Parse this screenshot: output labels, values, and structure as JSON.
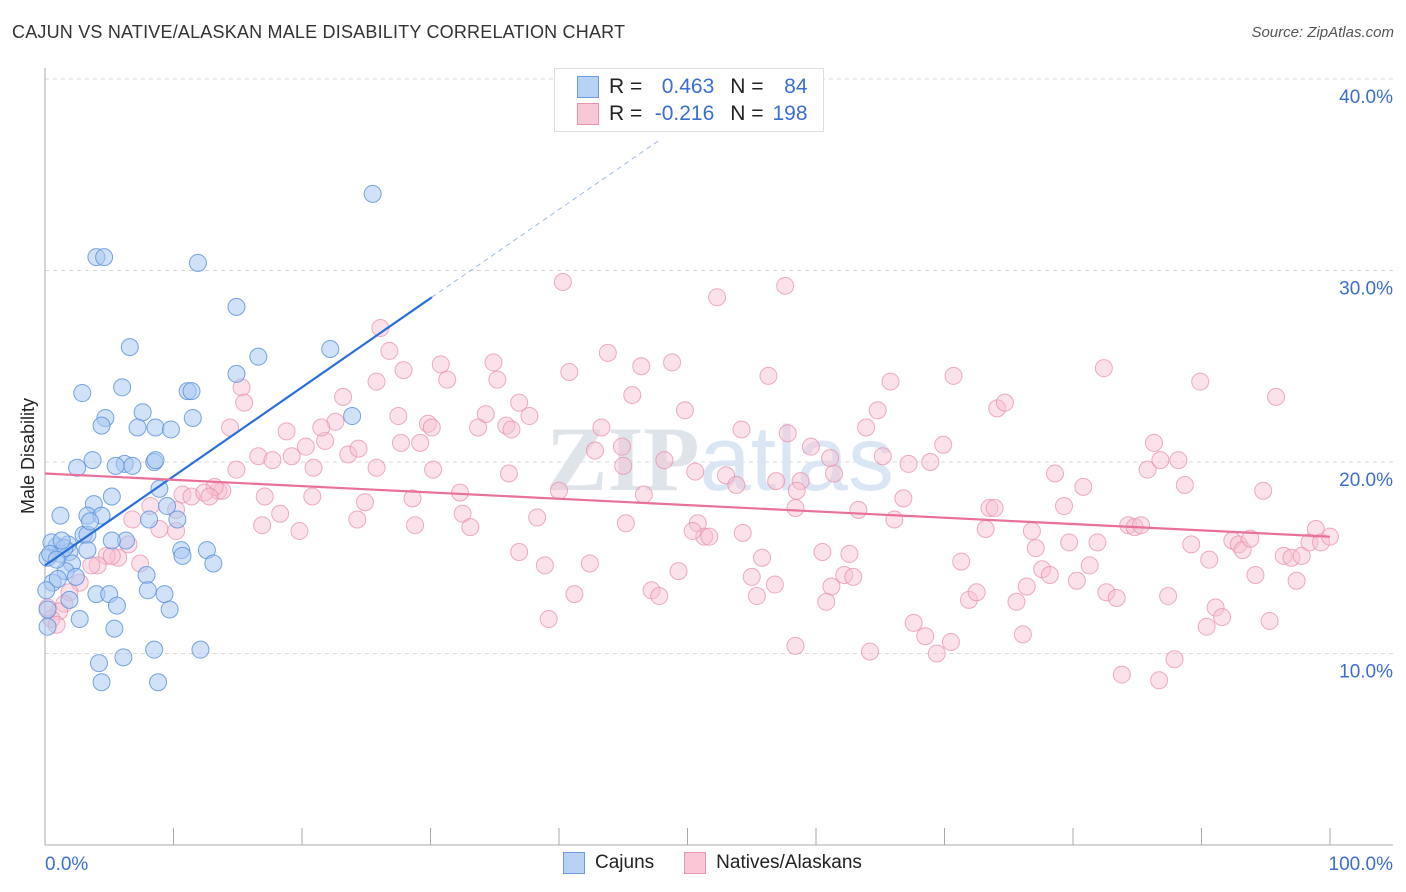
{
  "title": "CAJUN VS NATIVE/ALASKAN MALE DISABILITY CORRELATION CHART",
  "source": "Source: ZipAtlas.com",
  "watermark": "ZIPatlas",
  "legend": {
    "rows": [
      {
        "r_label": "R =",
        "r_value": "0.463",
        "n_label": "N =",
        "n_value": "84"
      },
      {
        "r_label": "R =",
        "r_value": "-0.216",
        "n_label": "N =",
        "n_value": "198"
      }
    ]
  },
  "bottom_legend": [
    "Cajuns",
    "Natives/Alaskans"
  ],
  "colors": {
    "blue_fill": "#a9c8f2",
    "blue_stroke": "#5a8fdc",
    "blue_line": "#2a6fd8",
    "pink_fill": "#f7bfd0",
    "pink_stroke": "#e88aa8",
    "pink_line": "#e8709a",
    "label": "#3a6fd0"
  },
  "chart_data": {
    "type": "scatter",
    "title": "CAJUN VS NATIVE/ALASKAN MALE DISABILITY CORRELATION CHART",
    "xlabel": "",
    "ylabel": "Male Disability",
    "xlim": [
      0,
      100
    ],
    "ylim": [
      0,
      40
    ],
    "x_tick_labels": [
      "0.0%",
      "100.0%"
    ],
    "y_ticks": [
      10,
      20,
      30,
      40
    ],
    "y_tick_labels": [
      "10.0%",
      "20.0%",
      "30.0%",
      "40.0%"
    ],
    "grid": true,
    "legend_position": "top-center",
    "series": [
      {
        "name": "Cajuns",
        "R": 0.463,
        "N": 84,
        "trend": {
          "x0": 0,
          "y0": 14.6,
          "x1": 30.1,
          "y1": 28.6,
          "dash_to_x": 47.8,
          "dash_to_y": 36.8
        },
        "points": [
          [
            25.5,
            34.0
          ],
          [
            4.0,
            30.7
          ],
          [
            4.6,
            30.7
          ],
          [
            11.9,
            30.4
          ],
          [
            14.9,
            28.1
          ],
          [
            6.6,
            26.0
          ],
          [
            16.6,
            25.5
          ],
          [
            22.2,
            25.9
          ],
          [
            2.9,
            23.6
          ],
          [
            6.0,
            23.9
          ],
          [
            11.1,
            23.7
          ],
          [
            11.4,
            23.7
          ],
          [
            14.9,
            24.6
          ],
          [
            4.7,
            22.3
          ],
          [
            7.6,
            22.6
          ],
          [
            23.9,
            22.4
          ],
          [
            4.4,
            21.9
          ],
          [
            7.2,
            21.8
          ],
          [
            8.6,
            21.8
          ],
          [
            9.8,
            21.7
          ],
          [
            11.5,
            22.3
          ],
          [
            3.7,
            20.1
          ],
          [
            6.2,
            19.9
          ],
          [
            5.5,
            19.8
          ],
          [
            6.8,
            19.8
          ],
          [
            8.5,
            20.0
          ],
          [
            8.6,
            20.1
          ],
          [
            2.5,
            19.7
          ],
          [
            8.9,
            18.6
          ],
          [
            5.2,
            18.2
          ],
          [
            3.8,
            17.8
          ],
          [
            1.2,
            17.2
          ],
          [
            3.3,
            17.2
          ],
          [
            4.4,
            17.2
          ],
          [
            10.3,
            17.0
          ],
          [
            8.1,
            17.0
          ],
          [
            9.5,
            17.7
          ],
          [
            3.0,
            16.2
          ],
          [
            3.3,
            16.2
          ],
          [
            0.9,
            15.6
          ],
          [
            0.5,
            15.8
          ],
          [
            1.8,
            15.7
          ],
          [
            1.2,
            15.2
          ],
          [
            1.9,
            15.3
          ],
          [
            3.3,
            15.4
          ],
          [
            6.3,
            15.9
          ],
          [
            10.6,
            15.4
          ],
          [
            10.7,
            15.1
          ],
          [
            12.6,
            15.4
          ],
          [
            13.1,
            14.7
          ],
          [
            2.1,
            14.7
          ],
          [
            1.6,
            14.3
          ],
          [
            2.4,
            14.0
          ],
          [
            7.9,
            14.1
          ],
          [
            0.6,
            13.7
          ],
          [
            4.0,
            13.1
          ],
          [
            5.0,
            13.1
          ],
          [
            8.0,
            13.3
          ],
          [
            9.3,
            13.1
          ],
          [
            5.6,
            12.5
          ],
          [
            9.7,
            12.3
          ],
          [
            2.7,
            11.8
          ],
          [
            5.4,
            11.3
          ],
          [
            0.2,
            11.4
          ],
          [
            8.5,
            10.2
          ],
          [
            6.1,
            9.8
          ],
          [
            12.1,
            10.2
          ],
          [
            4.2,
            9.5
          ],
          [
            4.4,
            8.5
          ],
          [
            8.8,
            8.5
          ],
          [
            1.9,
            12.8
          ],
          [
            1.0,
            13.9
          ],
          [
            1.5,
            15.5
          ],
          [
            0.2,
            15.0
          ],
          [
            0.4,
            15.2
          ],
          [
            0.9,
            14.9
          ],
          [
            1.3,
            15.9
          ],
          [
            3.5,
            16.9
          ],
          [
            5.2,
            15.9
          ],
          [
            0.1,
            13.3
          ],
          [
            0.2,
            12.3
          ]
        ]
      },
      {
        "name": "Natives/Alaskans",
        "R": -0.216,
        "N": 198,
        "trend": {
          "x0": 0,
          "y0": 19.4,
          "x1": 100,
          "y1": 16.1
        },
        "points": [
          [
            26.1,
            27.0
          ],
          [
            26.8,
            25.8
          ],
          [
            27.9,
            24.8
          ],
          [
            30.8,
            25.1
          ],
          [
            31.3,
            24.3
          ],
          [
            34.9,
            25.2
          ],
          [
            35.2,
            24.3
          ],
          [
            36.9,
            23.1
          ],
          [
            37.7,
            22.4
          ],
          [
            34.3,
            22.5
          ],
          [
            33.7,
            21.8
          ],
          [
            35.9,
            21.9
          ],
          [
            36.3,
            21.7
          ],
          [
            40.3,
            29.4
          ],
          [
            52.3,
            28.6
          ],
          [
            57.6,
            29.2
          ],
          [
            43.8,
            25.7
          ],
          [
            46.4,
            25.0
          ],
          [
            48.8,
            25.2
          ],
          [
            40.8,
            24.7
          ],
          [
            45.7,
            23.5
          ],
          [
            49.8,
            22.7
          ],
          [
            43.3,
            21.8
          ],
          [
            44.9,
            20.8
          ],
          [
            42.8,
            20.6
          ],
          [
            45.0,
            19.8
          ],
          [
            48.2,
            20.1
          ],
          [
            46.6,
            18.3
          ],
          [
            50.6,
            19.5
          ],
          [
            53.0,
            19.3
          ],
          [
            53.8,
            18.8
          ],
          [
            40.0,
            18.5
          ],
          [
            36.1,
            19.4
          ],
          [
            32.3,
            18.4
          ],
          [
            32.5,
            17.3
          ],
          [
            33.1,
            16.6
          ],
          [
            38.3,
            17.1
          ],
          [
            28.6,
            18.1
          ],
          [
            28.8,
            16.7
          ],
          [
            27.7,
            21.0
          ],
          [
            29.8,
            22.0
          ],
          [
            30.2,
            19.6
          ],
          [
            29.2,
            21.0
          ],
          [
            27.5,
            22.4
          ],
          [
            25.8,
            24.2
          ],
          [
            23.2,
            23.4
          ],
          [
            22.6,
            22.1
          ],
          [
            21.8,
            21.1
          ],
          [
            21.5,
            21.8
          ],
          [
            20.3,
            20.8
          ],
          [
            20.9,
            19.7
          ],
          [
            19.2,
            20.3
          ],
          [
            18.8,
            21.6
          ],
          [
            16.6,
            20.3
          ],
          [
            17.7,
            20.1
          ],
          [
            17.1,
            18.2
          ],
          [
            15.3,
            23.9
          ],
          [
            15.5,
            23.1
          ],
          [
            14.4,
            21.8
          ],
          [
            14.9,
            19.6
          ],
          [
            13.5,
            18.5
          ],
          [
            13.8,
            18.5
          ],
          [
            13.2,
            18.7
          ],
          [
            10.7,
            18.3
          ],
          [
            11.4,
            18.2
          ],
          [
            12.4,
            18.4
          ],
          [
            12.8,
            18.2
          ],
          [
            10.2,
            17.5
          ],
          [
            10.2,
            16.4
          ],
          [
            8.9,
            16.5
          ],
          [
            8.2,
            17.7
          ],
          [
            6.8,
            17.0
          ],
          [
            6.5,
            15.7
          ],
          [
            5.7,
            15.0
          ],
          [
            7.4,
            14.7
          ],
          [
            4.8,
            15.1
          ],
          [
            5.2,
            15.1
          ],
          [
            4.1,
            14.6
          ],
          [
            3.6,
            14.6
          ],
          [
            2.7,
            13.7
          ],
          [
            1.9,
            13.2
          ],
          [
            1.5,
            12.6
          ],
          [
            1.1,
            12.2
          ],
          [
            0.5,
            11.8
          ],
          [
            0.2,
            12.4
          ],
          [
            0.9,
            11.5
          ],
          [
            16.9,
            16.7
          ],
          [
            18.3,
            17.3
          ],
          [
            19.8,
            16.4
          ],
          [
            24.3,
            17.0
          ],
          [
            23.6,
            20.4
          ],
          [
            25.8,
            19.7
          ],
          [
            24.4,
            20.7
          ],
          [
            20.8,
            18.2
          ],
          [
            24.9,
            17.9
          ],
          [
            30.1,
            21.8
          ],
          [
            36.9,
            15.3
          ],
          [
            38.9,
            14.6
          ],
          [
            41.2,
            13.1
          ],
          [
            42.4,
            14.7
          ],
          [
            39.2,
            11.8
          ],
          [
            45.2,
            16.8
          ],
          [
            47.2,
            13.3
          ],
          [
            47.8,
            13.0
          ],
          [
            49.3,
            14.3
          ],
          [
            50.8,
            16.8
          ],
          [
            51.3,
            16.1
          ],
          [
            51.7,
            16.1
          ],
          [
            54.3,
            16.3
          ],
          [
            55.8,
            15.0
          ],
          [
            55.0,
            14.0
          ],
          [
            55.4,
            13.0
          ],
          [
            56.8,
            13.6
          ],
          [
            58.4,
            10.4
          ],
          [
            60.5,
            15.3
          ],
          [
            61.2,
            13.5
          ],
          [
            62.6,
            15.2
          ],
          [
            60.8,
            12.7
          ],
          [
            62.2,
            14.1
          ],
          [
            62.9,
            14.0
          ],
          [
            64.2,
            10.1
          ],
          [
            63.3,
            17.5
          ],
          [
            63.9,
            21.8
          ],
          [
            65.2,
            20.3
          ],
          [
            65.8,
            24.2
          ],
          [
            66.1,
            17.0
          ],
          [
            66.8,
            18.1
          ],
          [
            67.2,
            19.9
          ],
          [
            64.8,
            22.7
          ],
          [
            68.9,
            20.0
          ],
          [
            69.9,
            20.9
          ],
          [
            70.7,
            24.5
          ],
          [
            67.6,
            11.6
          ],
          [
            68.5,
            10.9
          ],
          [
            69.4,
            10.0
          ],
          [
            70.5,
            10.6
          ],
          [
            71.3,
            14.8
          ],
          [
            71.9,
            12.8
          ],
          [
            72.5,
            13.2
          ],
          [
            73.2,
            16.5
          ],
          [
            73.5,
            17.6
          ],
          [
            73.9,
            17.6
          ],
          [
            74.1,
            22.8
          ],
          [
            74.7,
            23.1
          ],
          [
            75.6,
            12.7
          ],
          [
            76.1,
            11.0
          ],
          [
            76.4,
            13.5
          ],
          [
            76.8,
            16.4
          ],
          [
            77.1,
            15.5
          ],
          [
            77.6,
            14.4
          ],
          [
            78.2,
            14.1
          ],
          [
            78.6,
            19.4
          ],
          [
            79.3,
            17.7
          ],
          [
            79.7,
            15.8
          ],
          [
            80.3,
            13.8
          ],
          [
            80.8,
            18.7
          ],
          [
            81.3,
            14.6
          ],
          [
            81.9,
            15.8
          ],
          [
            82.4,
            24.9
          ],
          [
            82.6,
            13.2
          ],
          [
            83.4,
            12.9
          ],
          [
            83.8,
            8.9
          ],
          [
            84.3,
            16.7
          ],
          [
            84.8,
            16.6
          ],
          [
            85.3,
            16.7
          ],
          [
            85.8,
            19.6
          ],
          [
            86.3,
            21.0
          ],
          [
            86.8,
            20.1
          ],
          [
            87.4,
            13.0
          ],
          [
            87.9,
            9.7
          ],
          [
            88.2,
            20.1
          ],
          [
            88.7,
            18.8
          ],
          [
            89.2,
            15.7
          ],
          [
            89.9,
            24.2
          ],
          [
            90.4,
            11.4
          ],
          [
            90.6,
            14.9
          ],
          [
            91.1,
            12.4
          ],
          [
            91.6,
            11.9
          ],
          [
            92.4,
            15.9
          ],
          [
            92.9,
            15.7
          ],
          [
            93.2,
            15.4
          ],
          [
            93.8,
            16.0
          ],
          [
            94.2,
            14.1
          ],
          [
            94.8,
            18.5
          ],
          [
            95.3,
            11.7
          ],
          [
            95.8,
            23.4
          ],
          [
            96.4,
            15.1
          ],
          [
            97.0,
            15.0
          ],
          [
            97.4,
            13.8
          ],
          [
            97.8,
            15.1
          ],
          [
            98.4,
            15.8
          ],
          [
            98.9,
            16.5
          ],
          [
            99.3,
            15.8
          ],
          [
            100.0,
            16.1
          ],
          [
            86.7,
            8.6
          ],
          [
            58.4,
            17.6
          ],
          [
            58.8,
            19.0
          ],
          [
            58.5,
            18.5
          ],
          [
            54.2,
            21.7
          ],
          [
            57.8,
            21.5
          ],
          [
            56.3,
            24.5
          ],
          [
            50.4,
            16.4
          ],
          [
            61.4,
            19.4
          ],
          [
            61.1,
            20.2
          ],
          [
            59.6,
            20.8
          ],
          [
            56.9,
            19.0
          ]
        ]
      }
    ]
  }
}
